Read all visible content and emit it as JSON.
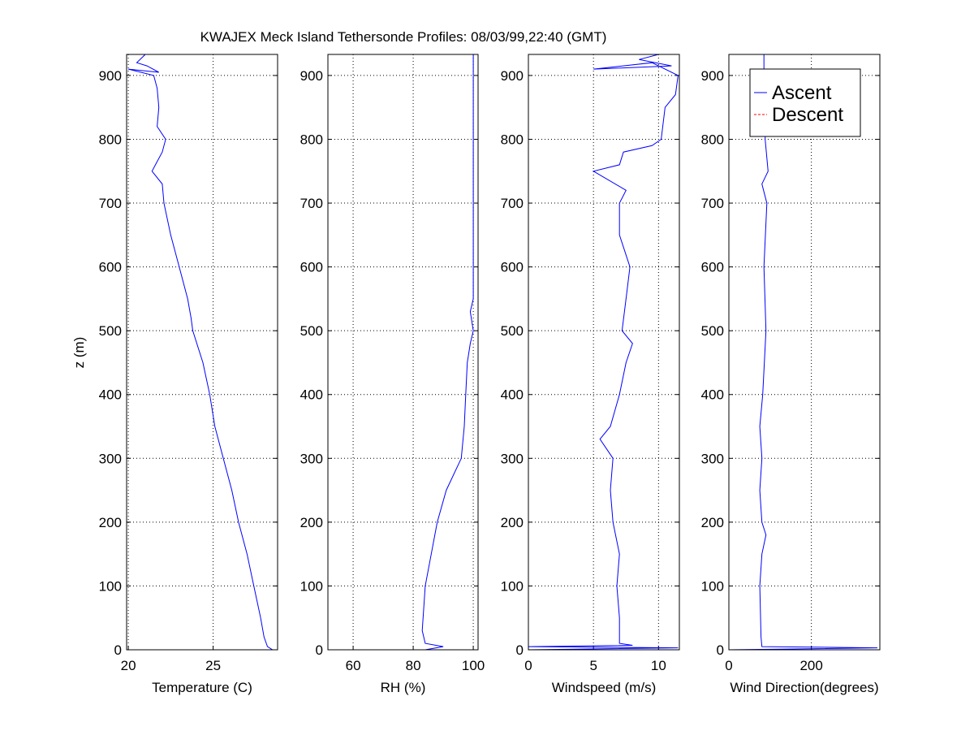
{
  "chart_data": {
    "type": "line",
    "title": "KWAJEX Meck Island Tethersonde Profiles: 08/03/99,22:40 (GMT)",
    "ylabel": "z (m)",
    "ylim": [
      0,
      933
    ],
    "yticks": [
      0,
      100,
      200,
      300,
      400,
      500,
      600,
      700,
      800,
      900
    ],
    "grid": true,
    "legend": {
      "placement": "top-right of Wind Direction panel",
      "entries": [
        {
          "name": "Ascent",
          "color": "#0000ff",
          "style": "solid"
        },
        {
          "name": "Descent",
          "color": "#ff0000",
          "style": "dashed"
        }
      ]
    },
    "panels": [
      {
        "xlabel": "Temperature (C)",
        "xlim": [
          19.9,
          28.8
        ],
        "xticks": [
          20,
          25
        ],
        "series": [
          {
            "name": "Ascent",
            "points": [
              [
                28.8,
                0
              ],
              [
                25.5,
                0
              ],
              [
                28.5,
                0
              ],
              [
                28.2,
                5
              ],
              [
                28.0,
                20
              ],
              [
                27.8,
                50
              ],
              [
                27.4,
                100
              ],
              [
                27.0,
                150
              ],
              [
                26.5,
                200
              ],
              [
                26.1,
                250
              ],
              [
                25.6,
                300
              ],
              [
                25.1,
                350
              ],
              [
                24.8,
                400
              ],
              [
                24.4,
                450
              ],
              [
                23.8,
                500
              ],
              [
                23.7,
                520
              ],
              [
                23.5,
                550
              ],
              [
                23.0,
                600
              ],
              [
                22.5,
                650
              ],
              [
                22.1,
                700
              ],
              [
                22.0,
                730
              ],
              [
                21.4,
                750
              ],
              [
                21.6,
                760
              ],
              [
                22.0,
                780
              ],
              [
                22.2,
                800
              ],
              [
                21.7,
                820
              ],
              [
                21.8,
                850
              ],
              [
                21.7,
                880
              ],
              [
                21.5,
                900
              ],
              [
                20.0,
                910
              ],
              [
                21.8,
                905
              ],
              [
                21.1,
                915
              ],
              [
                20.5,
                920
              ],
              [
                21.0,
                933
              ]
            ]
          }
        ]
      },
      {
        "xlabel": "RH (%)",
        "xlim": [
          51.6,
          101.6
        ],
        "xticks": [
          60,
          80,
          100
        ],
        "series": [
          {
            "name": "Ascent",
            "points": [
              [
                58,
                0
              ],
              [
                84,
                0
              ],
              [
                90,
                5
              ],
              [
                84,
                10
              ],
              [
                83,
                30
              ],
              [
                84,
                100
              ],
              [
                86,
                150
              ],
              [
                88,
                200
              ],
              [
                91,
                250
              ],
              [
                96,
                300
              ],
              [
                97,
                350
              ],
              [
                97.5,
                400
              ],
              [
                98,
                450
              ],
              [
                99,
                480
              ],
              [
                100,
                500
              ],
              [
                99,
                530
              ],
              [
                100,
                550
              ],
              [
                100,
                560
              ],
              [
                100,
                600
              ],
              [
                100,
                933
              ]
            ]
          }
        ]
      },
      {
        "xlabel": "Windspeed (m/s)",
        "xlim": [
          0,
          11.6
        ],
        "xticks": [
          0,
          5,
          10
        ],
        "series": [
          {
            "name": "Ascent",
            "points": [
              [
                0,
                0
              ],
              [
                11.5,
                3
              ],
              [
                0,
                5
              ],
              [
                8,
                7
              ],
              [
                7,
                10
              ],
              [
                7,
                50
              ],
              [
                6.8,
                100
              ],
              [
                7,
                150
              ],
              [
                6.5,
                200
              ],
              [
                6.3,
                250
              ],
              [
                6.5,
                300
              ],
              [
                5.5,
                330
              ],
              [
                6.3,
                350
              ],
              [
                7,
                400
              ],
              [
                7.5,
                450
              ],
              [
                8,
                480
              ],
              [
                7.2,
                500
              ],
              [
                7.5,
                550
              ],
              [
                7.8,
                600
              ],
              [
                7,
                650
              ],
              [
                7,
                700
              ],
              [
                7.5,
                720
              ],
              [
                5,
                750
              ],
              [
                7,
                760
              ],
              [
                7.3,
                780
              ],
              [
                9.5,
                790
              ],
              [
                10.2,
                800
              ],
              [
                10.5,
                850
              ],
              [
                11.3,
                870
              ],
              [
                11.5,
                900
              ],
              [
                9.5,
                920
              ],
              [
                5,
                910
              ],
              [
                11,
                915
              ],
              [
                8.5,
                925
              ],
              [
                10,
                933
              ]
            ]
          }
        ]
      },
      {
        "xlabel": "Wind Direction(degrees)",
        "xlim": [
          0,
          366
        ],
        "xticks": [
          0,
          200
        ],
        "series": [
          {
            "name": "Ascent",
            "points": [
              [
                0,
                0
              ],
              [
                360,
                3
              ],
              [
                80,
                5
              ],
              [
                78,
                20
              ],
              [
                75,
                100
              ],
              [
                80,
                150
              ],
              [
                90,
                180
              ],
              [
                80,
                200
              ],
              [
                75,
                250
              ],
              [
                80,
                300
              ],
              [
                75,
                350
              ],
              [
                82,
                400
              ],
              [
                90,
                500
              ],
              [
                85,
                600
              ],
              [
                92,
                700
              ],
              [
                80,
                730
              ],
              [
                95,
                750
              ],
              [
                88,
                800
              ],
              [
                90,
                850
              ],
              [
                85,
                900
              ],
              [
                85,
                933
              ]
            ]
          }
        ]
      }
    ]
  }
}
